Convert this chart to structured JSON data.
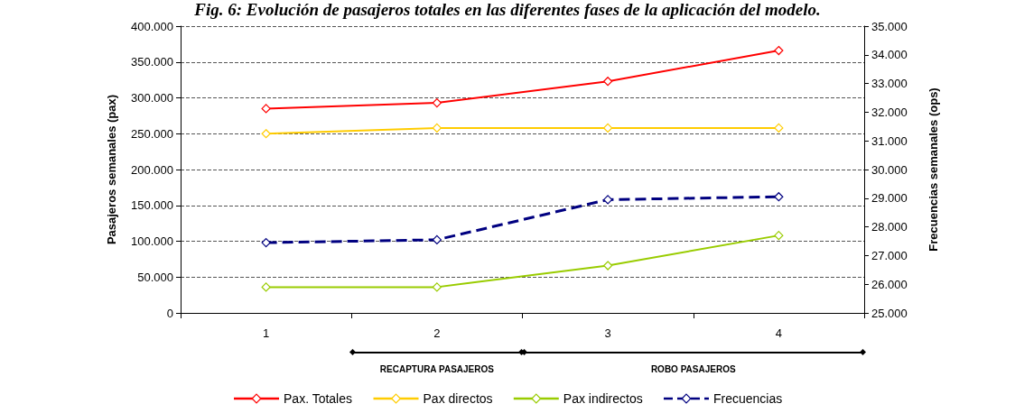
{
  "chart_data": {
    "type": "line",
    "title": "Fig. 6: Evolución de pasajeros totales en las diferentes fases de la aplicación del modelo.",
    "ylabel": "Pasajeros semanales (pax)",
    "y2label": "Frecuencias semanales (ops)",
    "categories": [
      "1",
      "2",
      "3",
      "4"
    ],
    "series": [
      {
        "name": "Pax. Totales",
        "color": "#ff0000",
        "values": [
          285000,
          293000,
          323000,
          366000
        ]
      },
      {
        "name": "Pax directos",
        "color": "#ffcc00",
        "values": [
          250000,
          258000,
          258000,
          258000
        ]
      },
      {
        "name": "Pax indirectos",
        "color": "#99cc00",
        "values": [
          36000,
          36000,
          66000,
          108000
        ]
      },
      {
        "name": "Frecuencias",
        "color": "#000080",
        "values": [
          27450,
          27550,
          28950,
          29050
        ],
        "axis": "y2",
        "line_style": "dashed"
      }
    ],
    "ylim": [
      0,
      400000
    ],
    "yticks": [
      {
        "value": 0,
        "label": "0"
      },
      {
        "value": 50000,
        "label": "50.000"
      },
      {
        "value": 100000,
        "label": "100.000"
      },
      {
        "value": 150000,
        "label": "150.000"
      },
      {
        "value": 200000,
        "label": "200.000"
      },
      {
        "value": 250000,
        "label": "250.000"
      },
      {
        "value": 300000,
        "label": "300.000"
      },
      {
        "value": 350000,
        "label": "350.000"
      },
      {
        "value": 400000,
        "label": "400.000"
      }
    ],
    "y2lim": [
      25000,
      35000
    ],
    "y2ticks": [
      {
        "value": 25000,
        "label": "25.000"
      },
      {
        "value": 26000,
        "label": "26.000"
      },
      {
        "value": 27000,
        "label": "27.000"
      },
      {
        "value": 28000,
        "label": "28.000"
      },
      {
        "value": 29000,
        "label": "29.000"
      },
      {
        "value": 30000,
        "label": "30.000"
      },
      {
        "value": 31000,
        "label": "31.000"
      },
      {
        "value": 32000,
        "label": "32.000"
      },
      {
        "value": 33000,
        "label": "33.000"
      },
      {
        "value": 34000,
        "label": "34.000"
      },
      {
        "value": 35000,
        "label": "35.000"
      }
    ],
    "annotations": [
      "RECAPTURA PASAJEROS",
      "ROBO PASAJEROS"
    ],
    "grid": "y",
    "legend": "bottom",
    "marker": "diamond",
    "line_style": "solid"
  }
}
